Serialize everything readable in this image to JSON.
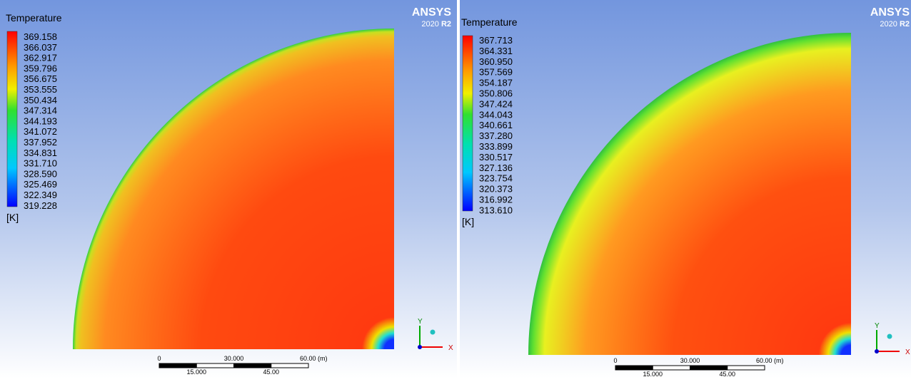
{
  "panels": [
    {
      "legend": {
        "title": "Temperature",
        "values": [
          "369.158",
          "366.037",
          "362.917",
          "359.796",
          "356.675",
          "353.555",
          "350.434",
          "347.314",
          "344.193",
          "341.072",
          "337.952",
          "334.831",
          "331.710",
          "328.590",
          "325.469",
          "322.349",
          "319.228"
        ],
        "unit": "[K]"
      },
      "logo": {
        "name": "ANSYS",
        "version": "2020",
        "release": "R2"
      },
      "scale": {
        "top": [
          "0",
          "30.000",
          "60.00 (m)"
        ],
        "bottom": [
          "15.000",
          "45.00"
        ]
      },
      "axes": {
        "y": "Y",
        "x": "X"
      }
    },
    {
      "legend": {
        "title": "Temperature",
        "values": [
          "367.713",
          "364.331",
          "360.950",
          "357.569",
          "354.187",
          "350.806",
          "347.424",
          "344.043",
          "340.661",
          "337.280",
          "333.899",
          "330.517",
          "327.136",
          "323.754",
          "320.373",
          "316.992",
          "313.610"
        ],
        "unit": "[K]"
      },
      "logo": {
        "name": "ANSYS",
        "version": "2020",
        "release": "R2"
      },
      "scale": {
        "top": [
          "0",
          "30.000",
          "60.00 (m)"
        ],
        "bottom": [
          "15.000",
          "45.00"
        ]
      },
      "axes": {
        "y": "Y",
        "x": "X"
      }
    }
  ]
}
